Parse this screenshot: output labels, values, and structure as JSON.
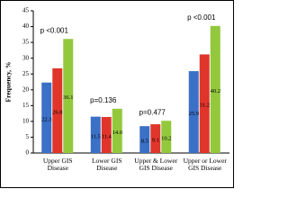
{
  "chart_data": {
    "type": "bar",
    "y_label": "Frequency, %",
    "categories": [
      "Upper GIS Disease",
      "Lower GIS Disease",
      "Upper & Lower\nGIS Disease",
      "Upper or Lower\nGIS Disease"
    ],
    "series": [
      {
        "color": "#3a70c6",
        "values": [
          22.3,
          11.5,
          8.5,
          25.9
        ]
      },
      {
        "color": "#e0352b",
        "values": [
          26.8,
          11.4,
          9.1,
          31.2
        ]
      },
      {
        "color": "#93c83d",
        "values": [
          36.1,
          14.0,
          10.2,
          40.2
        ],
        "value_labels": [
          "36.1",
          "14.0",
          "10.2",
          "40.2"
        ]
      }
    ],
    "annotations": [
      "p <0.001",
      "p=0.136",
      "p=0.477",
      "p <0.001"
    ],
    "ylim": [
      0,
      45
    ],
    "yticks": [
      0,
      5,
      10,
      15,
      20,
      25,
      30,
      35,
      40,
      45
    ]
  }
}
